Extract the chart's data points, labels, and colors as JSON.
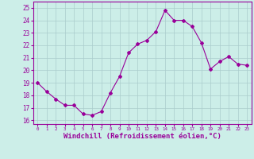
{
  "x": [
    0,
    1,
    2,
    3,
    4,
    5,
    6,
    7,
    8,
    9,
    10,
    11,
    12,
    13,
    14,
    15,
    16,
    17,
    18,
    19,
    20,
    21,
    22,
    23
  ],
  "y": [
    19.0,
    18.3,
    17.7,
    17.2,
    17.2,
    16.5,
    16.4,
    16.7,
    18.2,
    19.5,
    21.4,
    22.1,
    22.4,
    23.1,
    24.8,
    24.0,
    24.0,
    23.5,
    22.2,
    20.1,
    20.7,
    21.1,
    20.5,
    20.4
  ],
  "line_color": "#990099",
  "marker": "D",
  "markersize": 2.0,
  "linewidth": 0.8,
  "xlabel": "Windchill (Refroidissement éolien,°C)",
  "xlabel_fontsize": 6.5,
  "ylabel_ticks": [
    16,
    17,
    18,
    19,
    20,
    21,
    22,
    23,
    24,
    25
  ],
  "xtick_labels": [
    "0",
    "1",
    "2",
    "3",
    "4",
    "5",
    "6",
    "7",
    "8",
    "9",
    "10",
    "11",
    "12",
    "13",
    "14",
    "15",
    "16",
    "17",
    "18",
    "19",
    "20",
    "21",
    "22",
    "23"
  ],
  "ylim": [
    15.7,
    25.5
  ],
  "xlim": [
    -0.5,
    23.5
  ],
  "bg_color": "#cceee8",
  "grid_color": "#aacccc",
  "tick_color": "#990099",
  "tick_label_color": "#990099",
  "xlabel_color": "#990099",
  "spine_color": "#990099"
}
